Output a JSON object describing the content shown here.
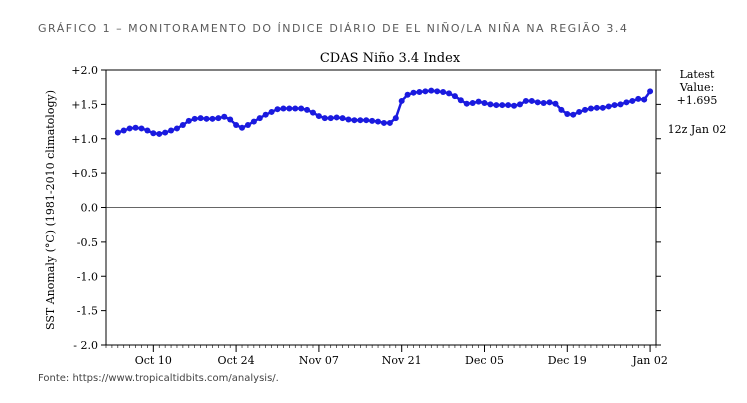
{
  "caption": "GRÁFICO 1 – MONITORAMENTO DO ÍNDICE DIÁRIO DE EL NIÑO/LA NIÑA NA REGIÃO 3.4",
  "source": "Fonte: https://www.tropicaltidbits.com/analysis/.",
  "colors": {
    "series": "#1a1adf",
    "axis": "#000000",
    "zero_line": "#666666"
  },
  "chart_data": {
    "type": "line",
    "title": "CDAS Niño 3.4 Index",
    "xlabel": "",
    "ylabel": "SST Anomaly (°C) (1981-2010 climatology)",
    "ylim": [
      -2.0,
      2.0
    ],
    "xlim": [
      "2022-10-02",
      "2023-01-03"
    ],
    "y_ticks": [
      2.0,
      1.5,
      1.0,
      0.5,
      0.0,
      -0.5,
      -1.0,
      -1.5,
      -2.0
    ],
    "y_tick_labels": [
      "+2.0",
      "+1.5",
      "+1.0",
      "+0.5",
      "0.0",
      "-0.5",
      "-1.0",
      "-1.5",
      "- 2.0"
    ],
    "x_ticks": [
      "2022-10-10",
      "2022-10-24",
      "2022-11-07",
      "2022-11-21",
      "2022-12-05",
      "2022-12-19",
      "2023-01-02"
    ],
    "x_tick_labels": [
      "Oct 10",
      "Oct 24",
      "Nov 07",
      "Nov 21",
      "Dec 05",
      "Dec 19",
      "Jan 02"
    ],
    "grid": false,
    "zero_line": true,
    "annotations": {
      "latest_label": "Latest",
      "value_label": "Value:",
      "latest_value": "+1.695",
      "timestamp": "12z Jan 02"
    },
    "series": [
      {
        "x": [
          "2022-10-04",
          "2022-10-05",
          "2022-10-06",
          "2022-10-07",
          "2022-10-08",
          "2022-10-09",
          "2022-10-10",
          "2022-10-11",
          "2022-10-12",
          "2022-10-13",
          "2022-10-14",
          "2022-10-15",
          "2022-10-16",
          "2022-10-17",
          "2022-10-18",
          "2022-10-19",
          "2022-10-20",
          "2022-10-21",
          "2022-10-22",
          "2022-10-23",
          "2022-10-24",
          "2022-10-25",
          "2022-10-26",
          "2022-10-27",
          "2022-10-28",
          "2022-10-29",
          "2022-10-30",
          "2022-10-31",
          "2022-11-01",
          "2022-11-02",
          "2022-11-03",
          "2022-11-04",
          "2022-11-05",
          "2022-11-06",
          "2022-11-07",
          "2022-11-08",
          "2022-11-09",
          "2022-11-10",
          "2022-11-11",
          "2022-11-12",
          "2022-11-13",
          "2022-11-14",
          "2022-11-15",
          "2022-11-16",
          "2022-11-17",
          "2022-11-18",
          "2022-11-19",
          "2022-11-20",
          "2022-11-21",
          "2022-11-22",
          "2022-11-23",
          "2022-11-24",
          "2022-11-25",
          "2022-11-26",
          "2022-11-27",
          "2022-11-28",
          "2022-11-29",
          "2022-11-30",
          "2022-12-01",
          "2022-12-02",
          "2022-12-03",
          "2022-12-04",
          "2022-12-05",
          "2022-12-06",
          "2022-12-07",
          "2022-12-08",
          "2022-12-09",
          "2022-12-10",
          "2022-12-11",
          "2022-12-12",
          "2022-12-13",
          "2022-12-14",
          "2022-12-15",
          "2022-12-16",
          "2022-12-17",
          "2022-12-18",
          "2022-12-19",
          "2022-12-20",
          "2022-12-21",
          "2022-12-22",
          "2022-12-23",
          "2022-12-24",
          "2022-12-25",
          "2022-12-26",
          "2022-12-27",
          "2022-12-28",
          "2022-12-29",
          "2022-12-30",
          "2022-12-31",
          "2023-01-01",
          "2023-01-02"
        ],
        "values": [
          1.09,
          1.12,
          1.15,
          1.16,
          1.15,
          1.12,
          1.08,
          1.07,
          1.09,
          1.12,
          1.15,
          1.2,
          1.26,
          1.29,
          1.3,
          1.29,
          1.29,
          1.3,
          1.32,
          1.28,
          1.2,
          1.16,
          1.2,
          1.25,
          1.3,
          1.35,
          1.39,
          1.43,
          1.44,
          1.44,
          1.44,
          1.44,
          1.42,
          1.38,
          1.33,
          1.3,
          1.3,
          1.31,
          1.3,
          1.28,
          1.27,
          1.27,
          1.27,
          1.26,
          1.25,
          1.23,
          1.23,
          1.3,
          1.55,
          1.64,
          1.67,
          1.68,
          1.69,
          1.7,
          1.69,
          1.68,
          1.66,
          1.62,
          1.56,
          1.51,
          1.52,
          1.54,
          1.52,
          1.5,
          1.49,
          1.49,
          1.49,
          1.48,
          1.5,
          1.55,
          1.55,
          1.53,
          1.52,
          1.53,
          1.51,
          1.42,
          1.36,
          1.35,
          1.39,
          1.42,
          1.44,
          1.45,
          1.45,
          1.47,
          1.49,
          1.5,
          1.53,
          1.55,
          1.58,
          1.57,
          1.69
        ]
      }
    ]
  }
}
